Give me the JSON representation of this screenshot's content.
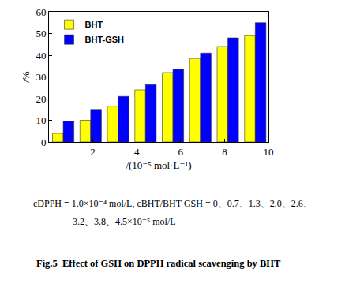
{
  "chart_data": {
    "type": "bar",
    "title": "Fig.5  Effect of GSH on DPPH radical scavenging by BHT",
    "x_label": "/(10⁻⁵ mol·L⁻¹)",
    "y_label": "/%",
    "annotations": [
      "cDPPH = 1.0×10⁻⁴ mol/L, cBHT/BHT-GSH = 0、0.7、1.3、2.0、2.6、",
      "3.2、3.8、4.5×10⁻⁵ mol/L"
    ],
    "x": [
      0.65,
      1.9,
      3.15,
      4.4,
      5.65,
      6.9,
      8.15,
      9.4
    ],
    "series": [
      {
        "name": "BHT",
        "color": "#ffff00",
        "values": [
          4,
          10,
          16.5,
          24,
          32,
          38.5,
          44,
          49
        ]
      },
      {
        "name": "BHT-GSH",
        "color": "#0000ff",
        "values": [
          9.5,
          15,
          21,
          26.5,
          33.5,
          41,
          48,
          55
        ]
      }
    ],
    "xlim": [
      0,
      10
    ],
    "xticks": [
      2,
      4,
      6,
      8,
      10
    ],
    "ylim": [
      0,
      60
    ],
    "yticks": [
      0,
      10,
      20,
      30,
      40,
      50,
      60
    ],
    "grid": false,
    "legend": "upper left"
  }
}
